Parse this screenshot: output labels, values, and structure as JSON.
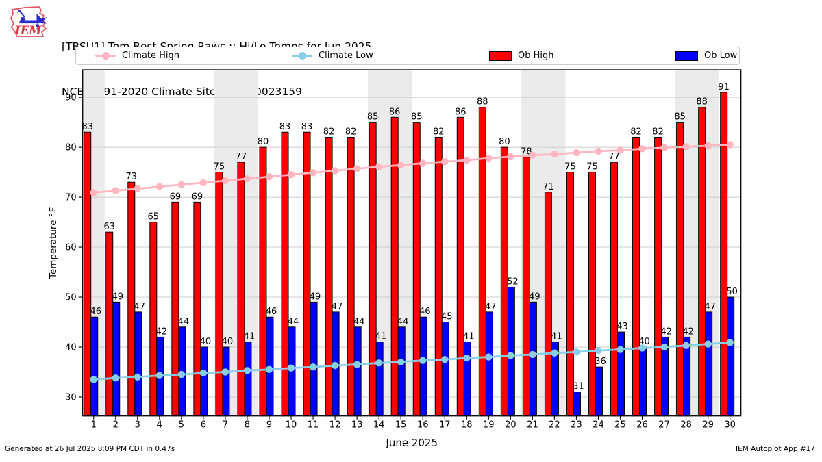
{
  "header": {
    "title_line1": "[TBSU1] Tom Best Spring Raws :: Hi/Lo Temps for Jun 2025",
    "title_line2": "NCEI 1991-2020 Climate Site: USW00023159",
    "logo_text": "IEM"
  },
  "legend": {
    "items": [
      {
        "label": "Climate High",
        "marker": "line-dot",
        "color": "#ffb6c1"
      },
      {
        "label": "Climate Low",
        "marker": "line-dot",
        "color": "#87ceeb"
      },
      {
        "label": "Ob High",
        "marker": "patch",
        "color": "#ff0000"
      },
      {
        "label": "Ob Low",
        "marker": "patch",
        "color": "#0000ff"
      }
    ]
  },
  "chart_data": {
    "type": "bar",
    "x": [
      1,
      2,
      3,
      4,
      5,
      6,
      7,
      8,
      9,
      10,
      11,
      12,
      13,
      14,
      15,
      16,
      17,
      18,
      19,
      20,
      21,
      22,
      23,
      24,
      25,
      26,
      27,
      28,
      29,
      30
    ],
    "series": [
      {
        "name": "Ob High",
        "type": "bar",
        "color": "#ff0000",
        "values": [
          83,
          63,
          73,
          65,
          69,
          69,
          75,
          77,
          80,
          83,
          83,
          82,
          82,
          85,
          86,
          85,
          82,
          86,
          88,
          80,
          78,
          71,
          75,
          75,
          77,
          82,
          82,
          85,
          88,
          91
        ]
      },
      {
        "name": "Ob Low",
        "type": "bar",
        "color": "#0000ff",
        "values": [
          46,
          49,
          47,
          42,
          44,
          40,
          40,
          41,
          46,
          44,
          49,
          47,
          44,
          41,
          44,
          46,
          45,
          41,
          47,
          52,
          49,
          41,
          31,
          36,
          43,
          40,
          42,
          42,
          47,
          50
        ]
      },
      {
        "name": "Climate High",
        "type": "line",
        "color": "#ffb6c1",
        "values": [
          70.9,
          71.3,
          71.7,
          72.1,
          72.5,
          72.9,
          73.3,
          73.7,
          74.1,
          74.5,
          74.9,
          75.3,
          75.7,
          76.1,
          76.4,
          76.8,
          77.1,
          77.4,
          77.8,
          78.1,
          78.4,
          78.6,
          78.9,
          79.2,
          79.4,
          79.7,
          79.9,
          80.1,
          80.3,
          80.5
        ]
      },
      {
        "name": "Climate Low",
        "type": "line",
        "color": "#87ceeb",
        "values": [
          33.5,
          33.8,
          34.0,
          34.3,
          34.5,
          34.8,
          35.0,
          35.3,
          35.5,
          35.8,
          36.0,
          36.3,
          36.5,
          36.8,
          37.0,
          37.3,
          37.5,
          37.8,
          38.0,
          38.3,
          38.5,
          38.8,
          39.0,
          39.3,
          39.5,
          39.8,
          40.0,
          40.3,
          40.6,
          40.9
        ]
      }
    ],
    "xlabel": "June 2025",
    "ylabel": "Temperature °F",
    "ylim": [
      26.2,
      95.5
    ],
    "yticks": [
      30,
      40,
      50,
      60,
      70,
      80,
      90
    ],
    "weekend_band_day_ranges": [
      [
        0.5,
        1.5
      ],
      [
        6.5,
        8.5
      ],
      [
        13.5,
        15.5
      ],
      [
        20.5,
        22.5
      ],
      [
        27.5,
        29.5
      ]
    ],
    "weekend_band_color": "#ebebeb",
    "grid": "horizontal",
    "gridline_color": "#cccccc",
    "legend_position": "top"
  },
  "footer": {
    "left": "Generated at 26 Jul 2025 8:09 PM CDT in 0.47s",
    "right": "IEM Autoplot App #17"
  }
}
